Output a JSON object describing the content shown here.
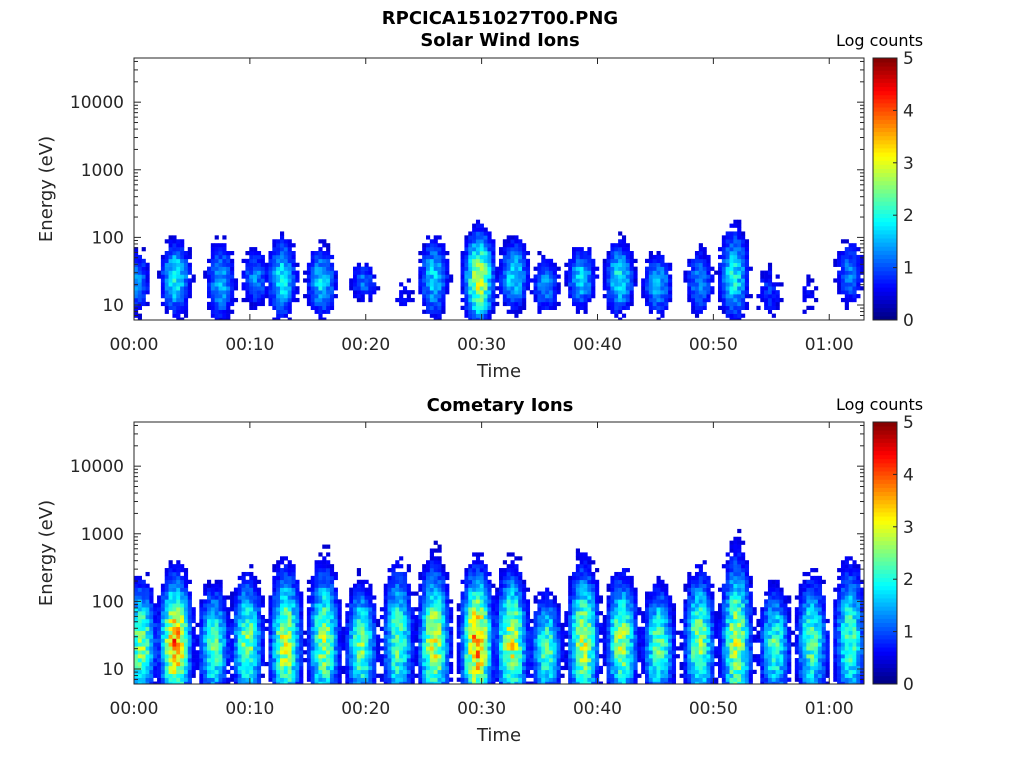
{
  "figure_title": "RPCICA151027T00.PNG",
  "chart_data": [
    {
      "type": "heatmap",
      "title": "Solar Wind Ions",
      "xlabel": "Time",
      "ylabel": "Energy (eV)",
      "x_ticks": [
        "00:00",
        "00:10",
        "00:20",
        "00:30",
        "00:40",
        "00:50",
        "01:00"
      ],
      "x_range_minutes": [
        0,
        63
      ],
      "y_ticks": [
        "10",
        "100",
        "1000",
        "10000"
      ],
      "y_range": [
        6,
        45000
      ],
      "y_scale": "log",
      "colorbar": {
        "label": "Log counts",
        "ticks": [
          "0",
          "1",
          "2",
          "3",
          "4",
          "5"
        ],
        "range": [
          0,
          5
        ],
        "colormap": "jet"
      },
      "bursts": [
        {
          "t": 0.2,
          "e": 22,
          "spread": 0.35,
          "peak": 1.3
        },
        {
          "t": 3.6,
          "e": 25,
          "spread": 0.35,
          "peak": 2.0
        },
        {
          "t": 7.5,
          "e": 22,
          "spread": 0.4,
          "peak": 1.5
        },
        {
          "t": 10.5,
          "e": 25,
          "spread": 0.3,
          "peak": 1.3
        },
        {
          "t": 12.8,
          "e": 25,
          "spread": 0.4,
          "peak": 1.8
        },
        {
          "t": 16.2,
          "e": 22,
          "spread": 0.35,
          "peak": 1.7
        },
        {
          "t": 19.8,
          "e": 22,
          "spread": 0.2,
          "peak": 1.2
        },
        {
          "t": 23.3,
          "e": 14,
          "spread": 0.25,
          "peak": 0.6
        },
        {
          "t": 25.9,
          "e": 25,
          "spread": 0.4,
          "peak": 1.7
        },
        {
          "t": 29.8,
          "e": 25,
          "spread": 0.45,
          "peak": 2.8
        },
        {
          "t": 32.8,
          "e": 28,
          "spread": 0.35,
          "peak": 1.8
        },
        {
          "t": 35.5,
          "e": 20,
          "spread": 0.3,
          "peak": 1.3
        },
        {
          "t": 38.6,
          "e": 25,
          "spread": 0.3,
          "peak": 1.7
        },
        {
          "t": 41.9,
          "e": 25,
          "spread": 0.35,
          "peak": 1.9
        },
        {
          "t": 45.2,
          "e": 20,
          "spread": 0.3,
          "peak": 1.6
        },
        {
          "t": 48.8,
          "e": 22,
          "spread": 0.35,
          "peak": 1.3
        },
        {
          "t": 51.8,
          "e": 28,
          "spread": 0.45,
          "peak": 1.9
        },
        {
          "t": 54.8,
          "e": 16,
          "spread": 0.3,
          "peak": 0.9
        },
        {
          "t": 58.2,
          "e": 14,
          "spread": 0.3,
          "peak": 0.6
        },
        {
          "t": 61.8,
          "e": 30,
          "spread": 0.35,
          "peak": 1.2
        }
      ]
    },
    {
      "type": "heatmap",
      "title": "Cometary Ions",
      "xlabel": "Time",
      "ylabel": "Energy (eV)",
      "x_ticks": [
        "00:00",
        "00:10",
        "00:20",
        "00:30",
        "00:40",
        "00:50",
        "01:00"
      ],
      "x_range_minutes": [
        0,
        63
      ],
      "y_ticks": [
        "10",
        "100",
        "1000",
        "10000"
      ],
      "y_range": [
        6,
        45000
      ],
      "y_scale": "log",
      "colorbar": {
        "label": "Log counts",
        "ticks": [
          "0",
          "1",
          "2",
          "3",
          "4",
          "5"
        ],
        "range": [
          0,
          5
        ],
        "colormap": "jet"
      },
      "bursts": [
        {
          "t": 0.6,
          "e": 25,
          "spread": 0.55,
          "peak": 2.6
        },
        {
          "t": 3.6,
          "e": 25,
          "spread": 0.6,
          "peak": 3.6
        },
        {
          "t": 6.9,
          "e": 22,
          "spread": 0.55,
          "peak": 2.3
        },
        {
          "t": 9.8,
          "e": 25,
          "spread": 0.6,
          "peak": 2.5
        },
        {
          "t": 13.1,
          "e": 25,
          "spread": 0.65,
          "peak": 2.9
        },
        {
          "t": 16.4,
          "e": 25,
          "spread": 0.7,
          "peak": 2.6
        },
        {
          "t": 19.6,
          "e": 22,
          "spread": 0.55,
          "peak": 2.5
        },
        {
          "t": 22.8,
          "e": 25,
          "spread": 0.7,
          "peak": 2.3
        },
        {
          "t": 25.9,
          "e": 25,
          "spread": 0.7,
          "peak": 2.9
        },
        {
          "t": 29.6,
          "e": 25,
          "spread": 0.65,
          "peak": 3.6
        },
        {
          "t": 32.6,
          "e": 25,
          "spread": 0.65,
          "peak": 2.9
        },
        {
          "t": 35.6,
          "e": 20,
          "spread": 0.5,
          "peak": 2.3
        },
        {
          "t": 38.8,
          "e": 25,
          "spread": 0.7,
          "peak": 2.8
        },
        {
          "t": 42.1,
          "e": 25,
          "spread": 0.6,
          "peak": 2.7
        },
        {
          "t": 45.3,
          "e": 22,
          "spread": 0.55,
          "peak": 2.4
        },
        {
          "t": 48.8,
          "e": 25,
          "spread": 0.65,
          "peak": 2.5
        },
        {
          "t": 52.0,
          "e": 25,
          "spread": 0.8,
          "peak": 2.7
        },
        {
          "t": 55.3,
          "e": 22,
          "spread": 0.55,
          "peak": 2.2
        },
        {
          "t": 58.5,
          "e": 25,
          "spread": 0.6,
          "peak": 2.3
        },
        {
          "t": 61.8,
          "e": 28,
          "spread": 0.7,
          "peak": 2.2
        }
      ]
    }
  ]
}
